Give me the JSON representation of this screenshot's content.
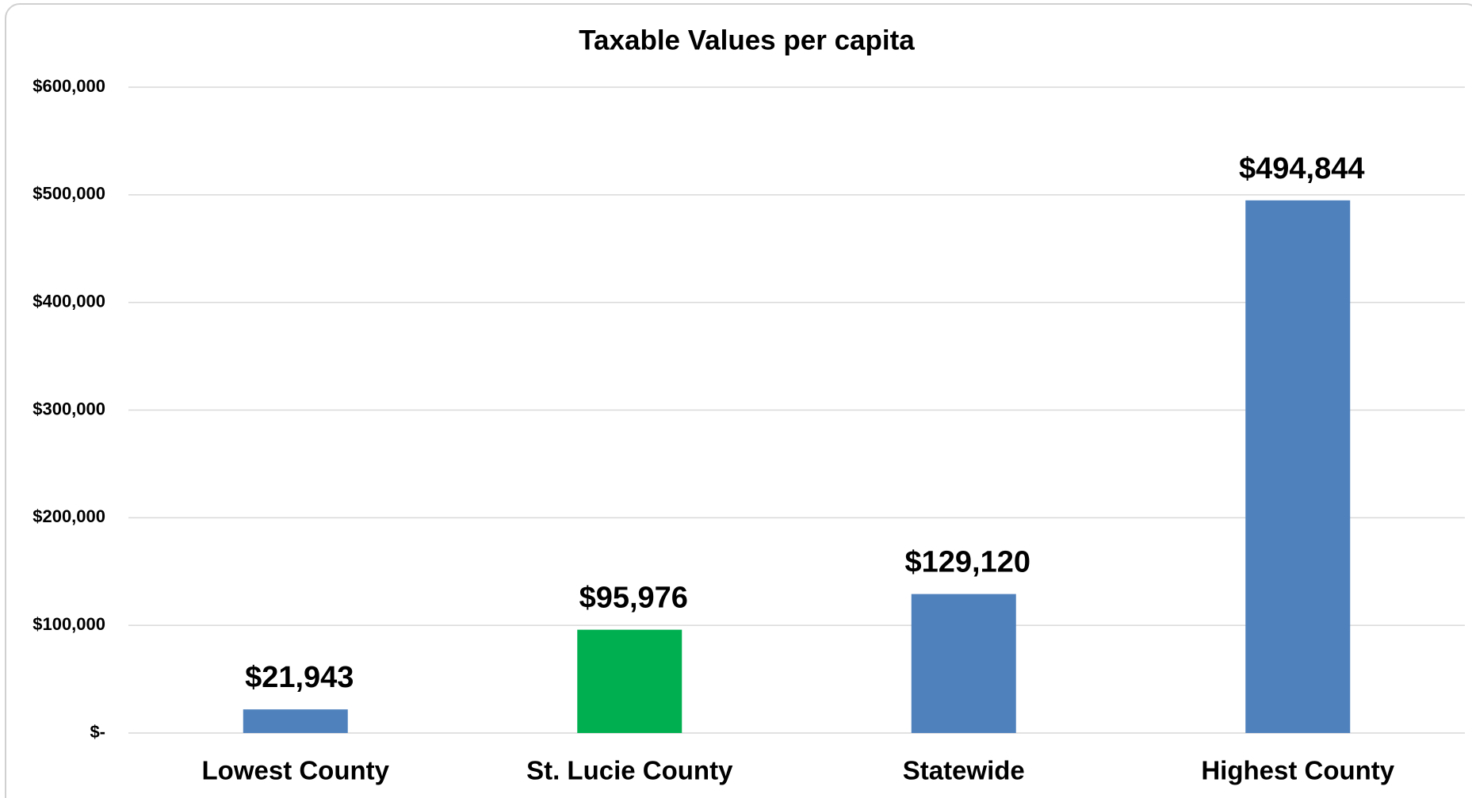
{
  "chart_data": {
    "type": "bar",
    "title": "Taxable Values per capita",
    "categories": [
      "Lowest County",
      "St. Lucie County",
      "Statewide",
      "Highest County"
    ],
    "values": [
      21943,
      95976,
      129120,
      494844
    ],
    "value_labels": [
      "$21,943",
      "$95,976",
      "$129,120",
      "$494,844"
    ],
    "colors": [
      "#4f81bd",
      "#00b050",
      "#4f81bd",
      "#4f81bd"
    ],
    "ylim": [
      0,
      600000
    ],
    "yticks": [
      {
        "value": 0,
        "label": "$-"
      },
      {
        "value": 100000,
        "label": "$100,000"
      },
      {
        "value": 200000,
        "label": "$200,000"
      },
      {
        "value": 300000,
        "label": "$300,000"
      },
      {
        "value": 400000,
        "label": "$400,000"
      },
      {
        "value": 500000,
        "label": "$500,000"
      },
      {
        "value": 600000,
        "label": "$600,000"
      }
    ],
    "grid": true
  }
}
